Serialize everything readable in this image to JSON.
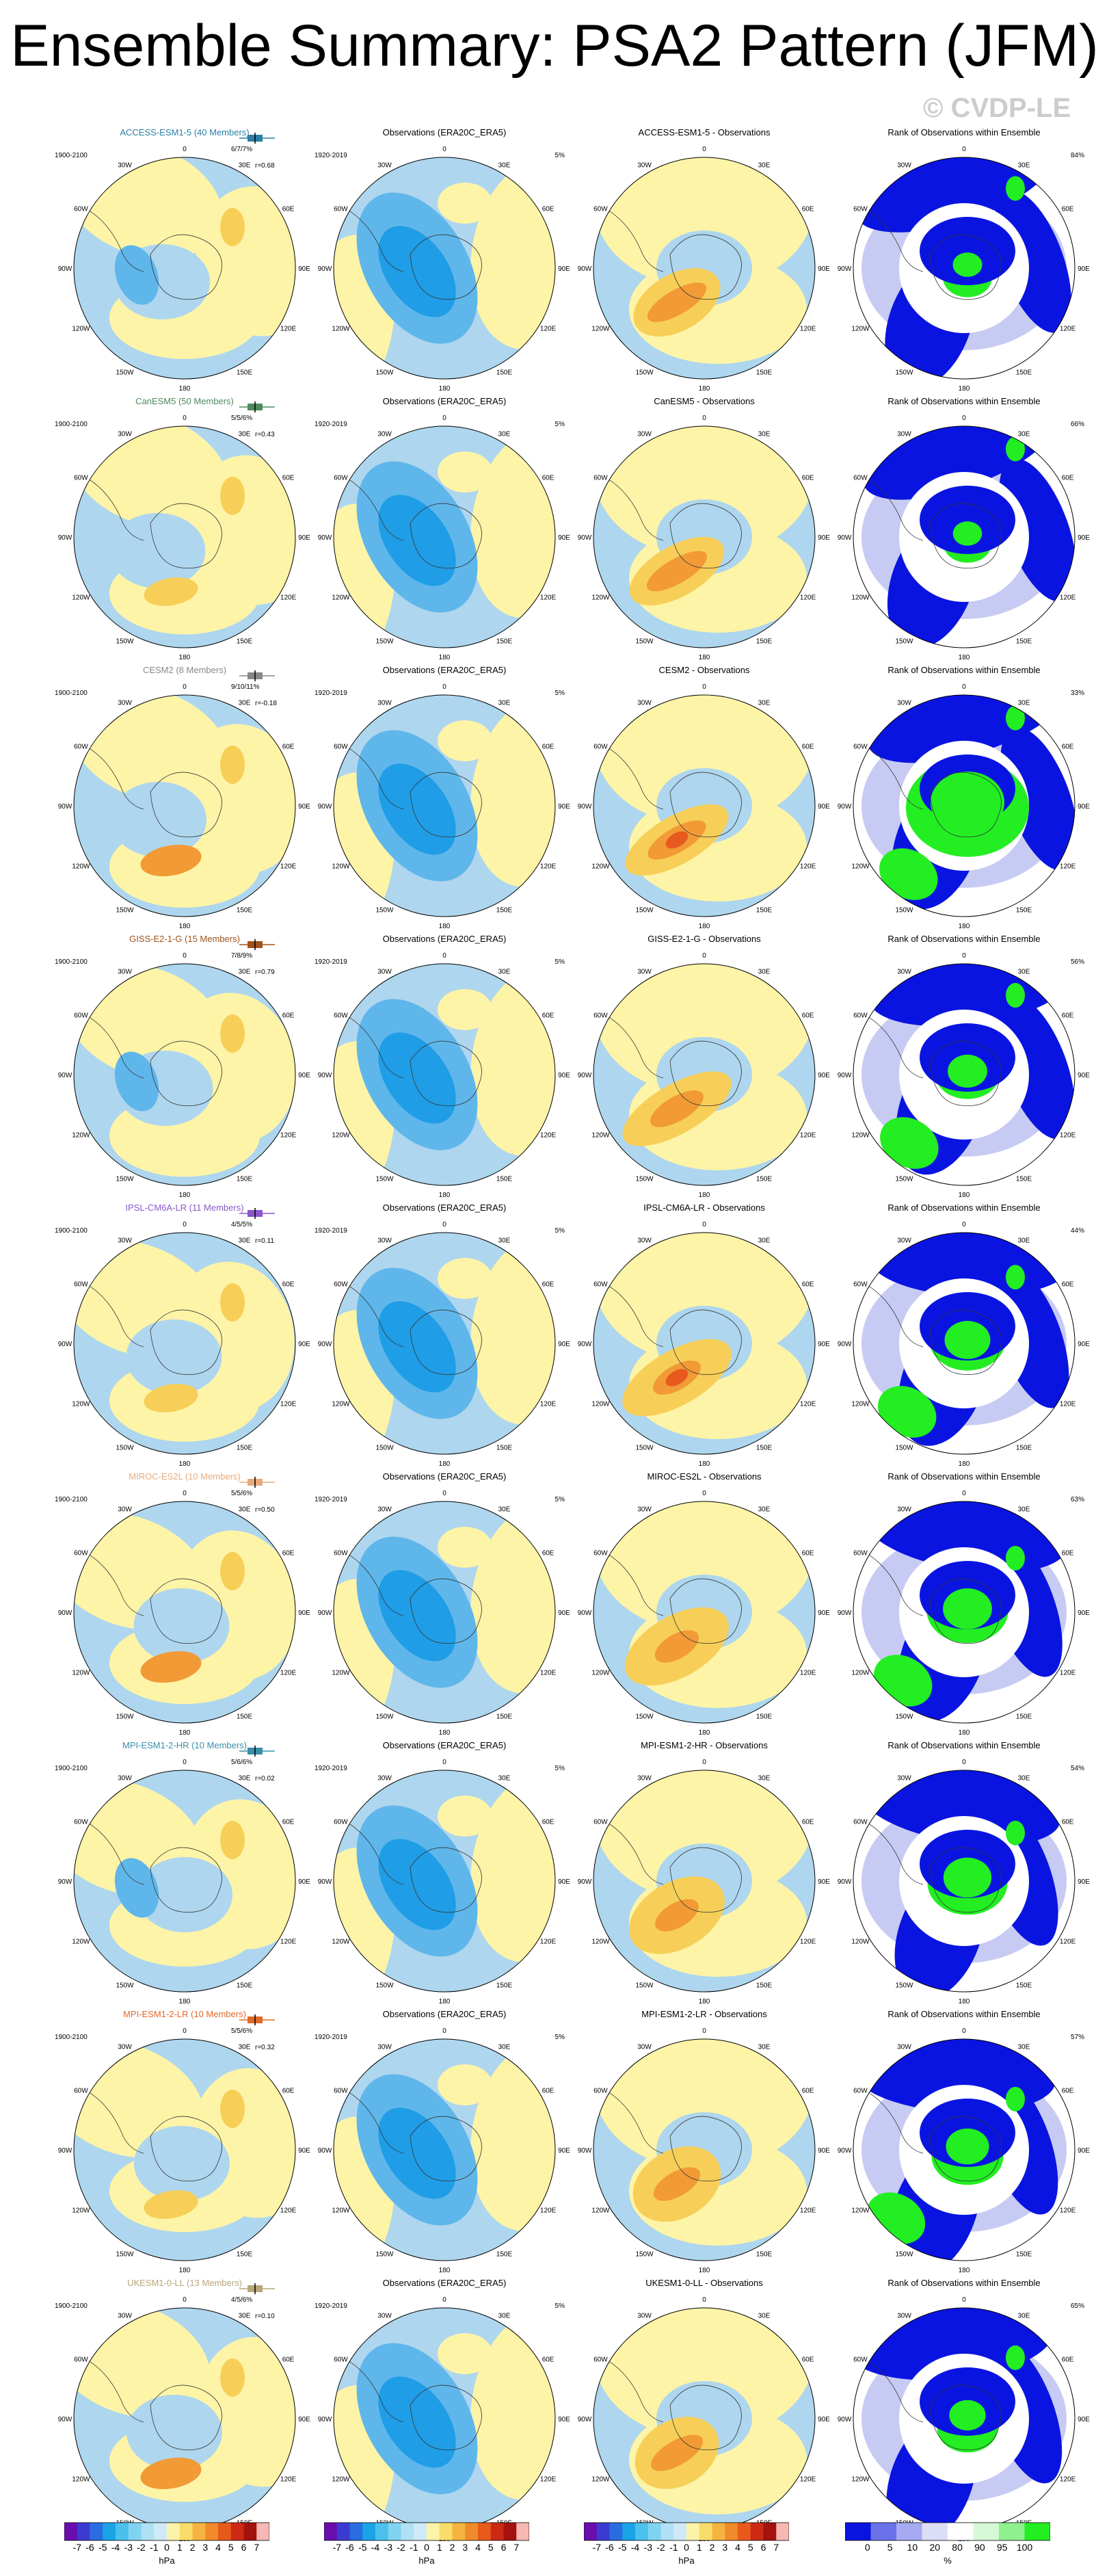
{
  "title": "Ensemble Summary: PSA2 Pattern (JFM)",
  "watermark": "© CVDP-LE",
  "obs_title": "Observations (ERA20C_ERA5)",
  "obs_period": "1920-2019",
  "model_period": "1900-2100",
  "rank_title": "Rank of Observations within Ensemble",
  "map_labels": [
    "0",
    "30E",
    "60E",
    "90E",
    "120E",
    "150E",
    "180",
    "150W",
    "120W",
    "90W",
    "60W",
    "30W"
  ],
  "rows": [
    {
      "model": "ACCESS-ESM1-5 (40 Members)",
      "color": "#2a7fa6",
      "diff_title": "ACCESS-ESM1-5 - Observations",
      "obs_pct": "5%",
      "rank_pct": "84%",
      "rank_info": "6/7/7%",
      "corr": "r=0.68"
    },
    {
      "model": "CanESM5 (50 Members)",
      "color": "#4e8a5e",
      "diff_title": "CanESM5 - Observations",
      "obs_pct": "5%",
      "rank_pct": "66%",
      "rank_info": "5/5/6%",
      "corr": "r=0.43"
    },
    {
      "model": "CESM2 (8 Members)",
      "color": "#888888",
      "diff_title": "CESM2 - Observations",
      "obs_pct": "5%",
      "rank_pct": "33%",
      "rank_info": "9/10/11%",
      "corr": "r=-0.18"
    },
    {
      "model": "GISS-E2-1-G (15 Members)",
      "color": "#a0521b",
      "diff_title": "GISS-E2-1-G - Observations",
      "obs_pct": "5%",
      "rank_pct": "56%",
      "rank_info": "7/8/9%",
      "corr": "r=0.79"
    },
    {
      "model": "IPSL-CM6A-LR (11 Members)",
      "color": "#8b57c9",
      "diff_title": "IPSL-CM6A-LR - Observations",
      "obs_pct": "5%",
      "rank_pct": "44%",
      "rank_info": "4/5/5%",
      "corr": "r=0.11"
    },
    {
      "model": "MIROC-ES2L (10 Members)",
      "color": "#e8a97a",
      "diff_title": "MIROC-ES2L - Observations",
      "obs_pct": "5%",
      "rank_pct": "63%",
      "rank_info": "5/5/6%",
      "corr": "r=0.50"
    },
    {
      "model": "MPI-ESM1-2-HR (10 Members)",
      "color": "#3a8ea8",
      "diff_title": "MPI-ESM1-2-HR - Observations",
      "obs_pct": "5%",
      "rank_pct": "54%",
      "rank_info": "5/6/6%",
      "corr": "r=0.02"
    },
    {
      "model": "MPI-ESM1-2-LR (10 Members)",
      "color": "#e06a2a",
      "diff_title": "MPI-ESM1-2-LR - Observations",
      "obs_pct": "5%",
      "rank_pct": "57%",
      "rank_info": "5/5/6%",
      "corr": "r=0.32"
    },
    {
      "model": "UKESM1-0-LL (13 Members)",
      "color": "#b7a77a",
      "diff_title": "UKESM1-0-LL - Observations",
      "obs_pct": "5%",
      "rank_pct": "65%",
      "rank_info": "4/5/6%",
      "corr": "r=0.10"
    }
  ],
  "colorbar_hpa": {
    "ticks": [
      "-7",
      "-6",
      "-5",
      "-4",
      "-3",
      "-2",
      "-1",
      "0",
      "1",
      "2",
      "3",
      "4",
      "5",
      "6",
      "7"
    ],
    "unit": "hPa",
    "colors": [
      "#6a0dad",
      "#3b3bd1",
      "#2a6de0",
      "#1ba3e8",
      "#4bc0ec",
      "#7fd3f0",
      "#b0e0f4",
      "#cfe9f7",
      "#fbf3a8",
      "#f9dc6a",
      "#f5b440",
      "#f08a2a",
      "#e85a1c",
      "#cc2a14",
      "#a3120e",
      "#f7b7b2"
    ]
  },
  "colorbar_rank": {
    "ticks": [
      "0",
      "5",
      "10",
      "20",
      "80",
      "90",
      "95",
      "100"
    ],
    "unit": "%",
    "colors": [
      "#0a14e0",
      "#6a72ea",
      "#a6aaf2",
      "#dcdef8",
      "#ffffff",
      "#d6f9d6",
      "#8ff08f",
      "#22ee22"
    ]
  },
  "map_colors": {
    "negative": "#aed6ee",
    "positive": "#fdf4a7",
    "neg_mid": "#5fb6ea",
    "neg_strong": "#1f9de6",
    "pos_mid": "#f7cf58",
    "pos_strong": "#f19a36",
    "pos_max": "#e8591f",
    "rank_low": "#0a14e0",
    "rank_lowmid": "#c7cbf3",
    "rank_high": "#22ee22"
  }
}
